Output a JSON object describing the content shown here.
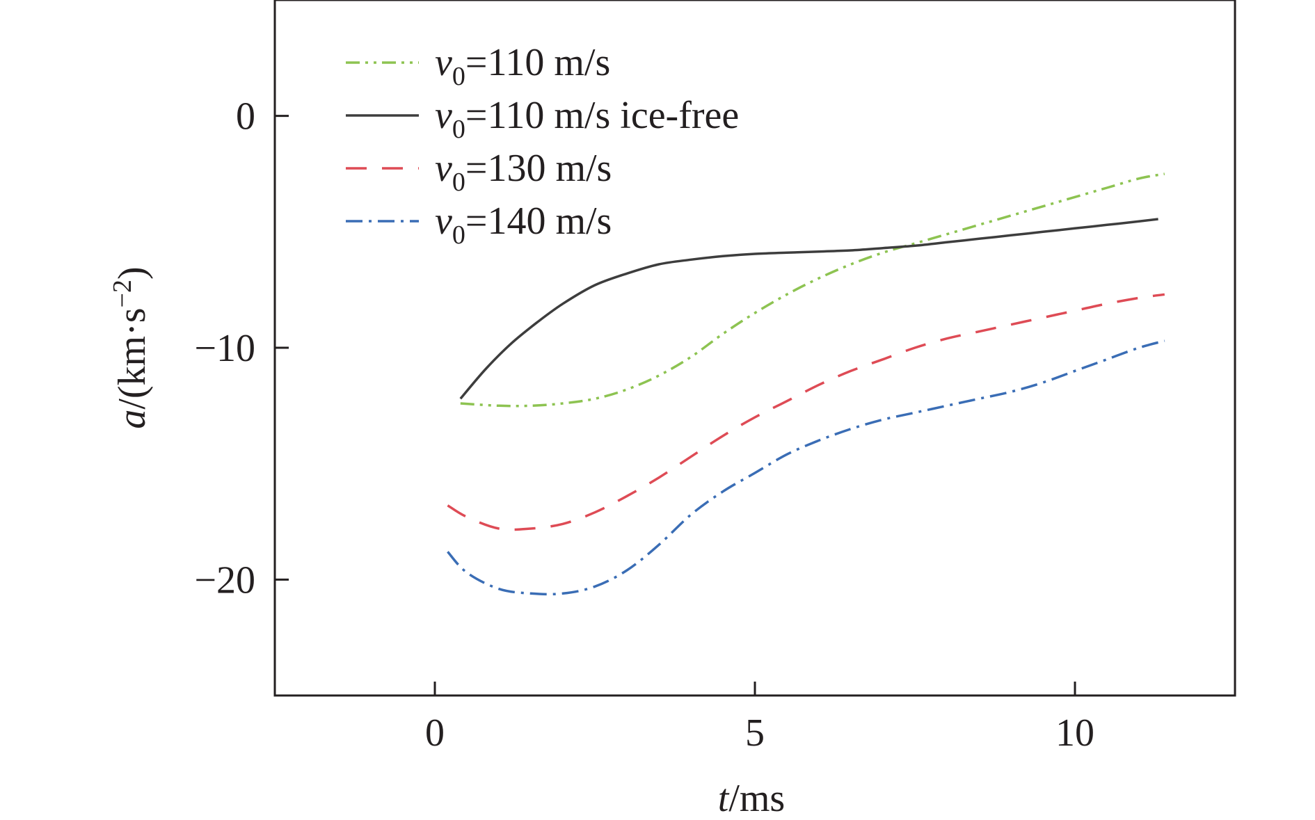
{
  "chart_data": {
    "type": "line",
    "xlabel": {
      "var": "t",
      "unit": "/ms"
    },
    "ylabel": {
      "var": "a",
      "unit": "/(km·s",
      "sup": "−2",
      "close": ")"
    },
    "xlim": [
      -2.5,
      12.5
    ],
    "ylim": [
      -25,
      5
    ],
    "xticks": [
      0,
      5,
      10
    ],
    "xtick_labels": [
      "0",
      "5",
      "10"
    ],
    "yticks": [
      0,
      -10,
      -20
    ],
    "ytick_labels": [
      "0",
      "−10",
      "−20"
    ],
    "grid": false,
    "legend_position": "top-left",
    "series": [
      {
        "name": "v0=110 m/s",
        "label": {
          "var": "v",
          "sub": "0",
          "rest": "=110 m/s"
        },
        "color": "#8dc351",
        "dash": "dash-dot-dot",
        "x": [
          0.4,
          1.0,
          1.5,
          2.0,
          2.5,
          3.0,
          3.5,
          4.0,
          4.5,
          5.0,
          5.5,
          6.0,
          6.5,
          7.0,
          7.5,
          8.0,
          8.5,
          9.0,
          9.5,
          10.0,
          10.5,
          11.0,
          11.4
        ],
        "y": [
          -12.4,
          -12.5,
          -12.5,
          -12.4,
          -12.2,
          -11.8,
          -11.2,
          -10.4,
          -9.4,
          -8.5,
          -7.7,
          -7.0,
          -6.4,
          -5.9,
          -5.5,
          -5.1,
          -4.7,
          -4.3,
          -3.9,
          -3.5,
          -3.1,
          -2.7,
          -2.5
        ]
      },
      {
        "name": "v0=110 m/s ice-free",
        "label": {
          "var": "v",
          "sub": "0",
          "rest": "=110 m/s ice-free"
        },
        "color": "#3d3d3d",
        "dash": "solid",
        "x": [
          0.4,
          0.8,
          1.2,
          1.6,
          2.0,
          2.5,
          3.0,
          3.5,
          4.0,
          4.5,
          5.0,
          5.5,
          6.0,
          6.5,
          7.0,
          7.5,
          8.0,
          8.5,
          9.0,
          9.5,
          10.0,
          10.5,
          11.0,
          11.3
        ],
        "y": [
          -12.2,
          -10.9,
          -9.8,
          -8.9,
          -8.1,
          -7.3,
          -6.8,
          -6.4,
          -6.2,
          -6.05,
          -5.95,
          -5.9,
          -5.85,
          -5.8,
          -5.7,
          -5.6,
          -5.45,
          -5.3,
          -5.15,
          -5.0,
          -4.85,
          -4.7,
          -4.55,
          -4.45
        ]
      },
      {
        "name": "v0=130 m/s",
        "label": {
          "var": "v",
          "sub": "0",
          "rest": "=130 m/s"
        },
        "color": "#de4b55",
        "dash": "dash",
        "x": [
          0.2,
          0.5,
          1.0,
          1.5,
          2.0,
          2.5,
          3.0,
          3.5,
          4.0,
          4.5,
          5.0,
          5.5,
          6.0,
          6.5,
          7.0,
          7.5,
          8.0,
          8.5,
          9.0,
          9.5,
          10.0,
          10.5,
          11.0,
          11.4
        ],
        "y": [
          -16.8,
          -17.3,
          -17.8,
          -17.8,
          -17.6,
          -17.1,
          -16.4,
          -15.6,
          -14.7,
          -13.8,
          -13.0,
          -12.3,
          -11.6,
          -11.0,
          -10.5,
          -10.0,
          -9.6,
          -9.3,
          -9.0,
          -8.7,
          -8.4,
          -8.1,
          -7.85,
          -7.7
        ]
      },
      {
        "name": "v0=140 m/s",
        "label": {
          "var": "v",
          "sub": "0",
          "rest": "=140 m/s"
        },
        "color": "#3a6db5",
        "dash": "dash-dot",
        "x": [
          0.2,
          0.5,
          1.0,
          1.5,
          2.0,
          2.5,
          3.0,
          3.5,
          4.0,
          4.5,
          5.0,
          5.5,
          6.0,
          6.5,
          7.0,
          7.5,
          8.0,
          8.5,
          9.0,
          9.5,
          10.0,
          10.5,
          11.0,
          11.4
        ],
        "y": [
          -18.8,
          -19.7,
          -20.4,
          -20.6,
          -20.6,
          -20.3,
          -19.6,
          -18.5,
          -17.2,
          -16.2,
          -15.4,
          -14.6,
          -14.0,
          -13.5,
          -13.1,
          -12.8,
          -12.5,
          -12.2,
          -11.9,
          -11.5,
          -11.0,
          -10.5,
          -10.0,
          -9.7
        ]
      }
    ]
  }
}
